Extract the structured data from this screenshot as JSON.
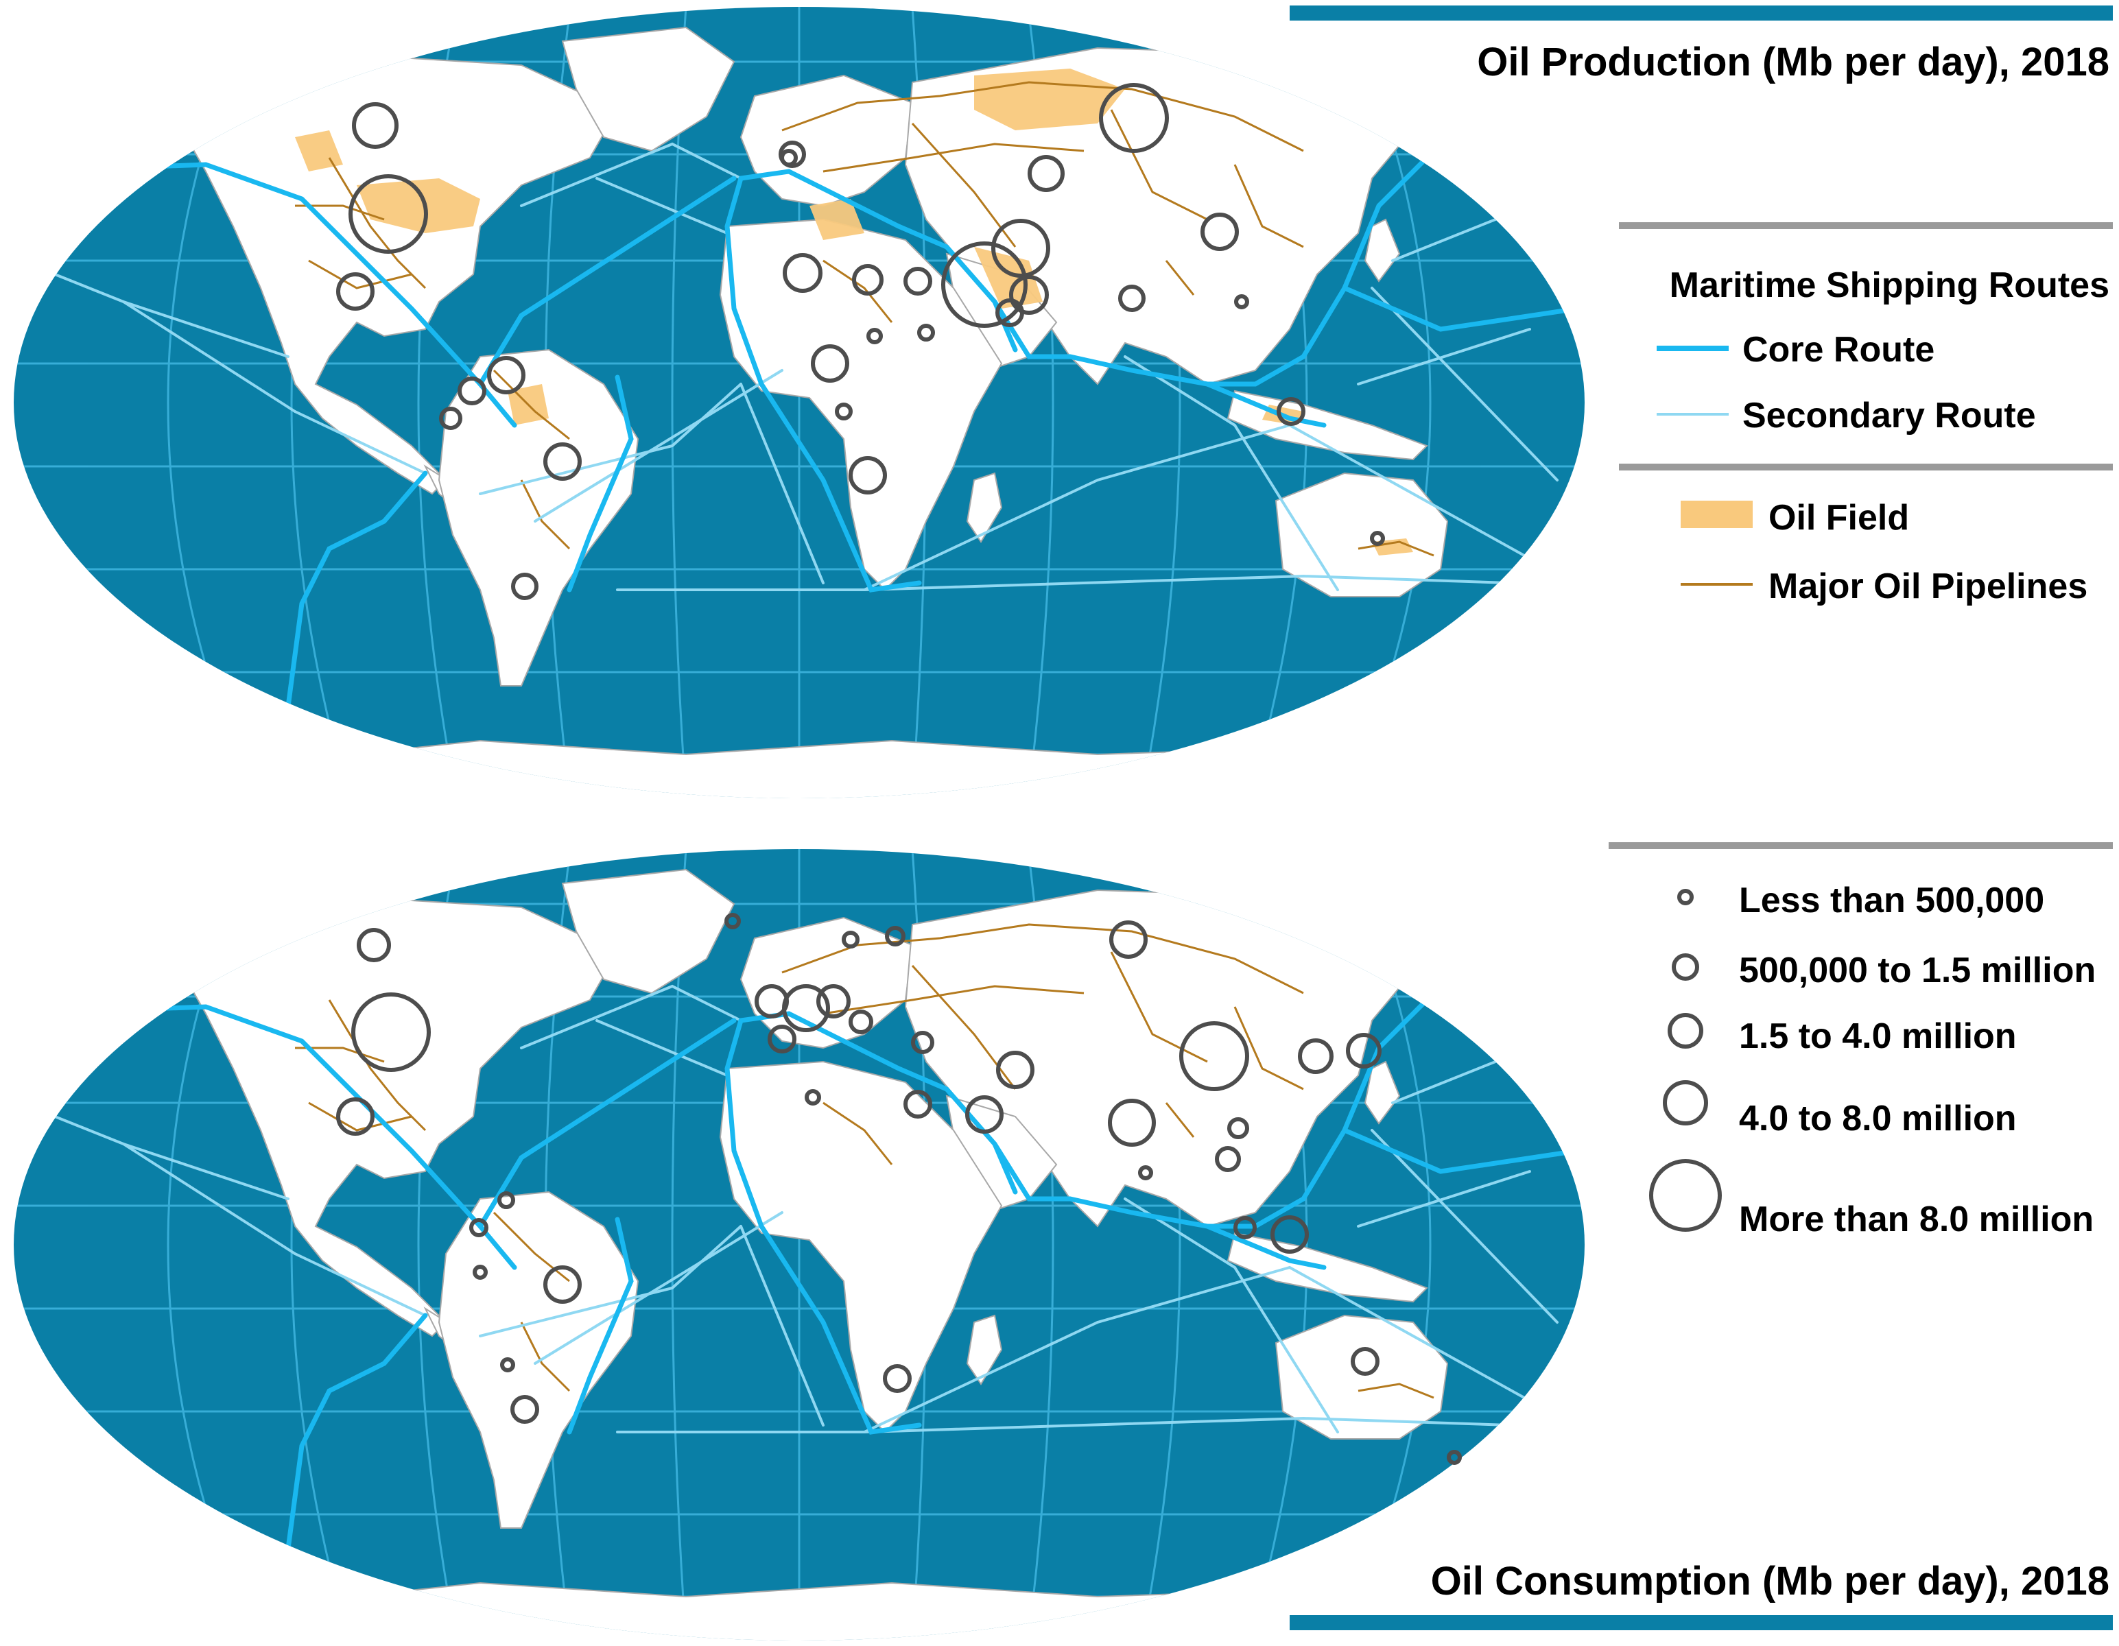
{
  "production_map": {
    "title": "Oil Production (Mb per day), 2018"
  },
  "consumption_map": {
    "title": "Oil Consumption (Mb per day), 2018"
  },
  "legend": {
    "shipping": {
      "heading": "Maritime Shipping Routes",
      "core_route": "Core Route",
      "secondary_route": "Secondary Route"
    },
    "oil": {
      "field": "Oil Field",
      "pipelines": "Major Oil Pipelines"
    },
    "sizes": [
      "Less than 500,000",
      "500,000 to 1.5 million",
      "1.5 to 4.0 million",
      "4.0 to 8.0 million",
      "More than 8.0 million"
    ]
  },
  "colors": {
    "ocean": "#0a7fa6",
    "land": "#ffffff",
    "graticule": "#3fb6e0",
    "core_route": "#19b8f0",
    "secondary_route": "#8fd8f2",
    "oil_field": "#f9c97d",
    "pipeline": "#b47a1e",
    "circle": "#4d4d4d",
    "title_bar": "#0a7fa6",
    "divider": "#9a9a9a"
  }
}
